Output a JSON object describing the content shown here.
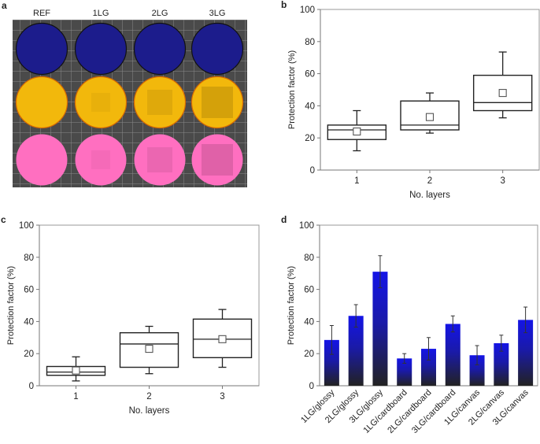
{
  "panel_a": {
    "label": "a",
    "columns": [
      "REF",
      "1LG",
      "2LG",
      "3LG"
    ],
    "row_colors": [
      "#1c1c8c",
      "#f2b80c",
      "#ff6fc0"
    ],
    "background_color": "#4a4a4a"
  },
  "chart_data": [
    {
      "panel": "b",
      "type": "box",
      "xlabel": "No. layers",
      "ylabel": "Protection factor (%)",
      "ylim": [
        0,
        100
      ],
      "yticks": [
        "0",
        "20",
        "40",
        "60",
        "80",
        "100"
      ],
      "categories": [
        "1",
        "2",
        "3"
      ],
      "boxes": [
        {
          "min": 12,
          "q1": 19,
          "median": 25,
          "q3": 28,
          "max": 37,
          "mean": 24
        },
        {
          "min": 23,
          "q1": 25,
          "median": 28,
          "q3": 43,
          "max": 48,
          "mean": 33
        },
        {
          "min": 32.5,
          "q1": 37,
          "median": 42,
          "q3": 59,
          "max": 73.5,
          "mean": 48
        }
      ]
    },
    {
      "panel": "c",
      "type": "box",
      "xlabel": "No. layers",
      "ylabel": "Protection factor (%)",
      "ylim": [
        0,
        100
      ],
      "yticks": [
        "0",
        "20",
        "40",
        "60",
        "80",
        "100"
      ],
      "categories": [
        "1",
        "2",
        "3"
      ],
      "boxes": [
        {
          "min": 3,
          "q1": 6.5,
          "median": 8.5,
          "q3": 12,
          "max": 18,
          "mean": 9.5
        },
        {
          "min": 7.5,
          "q1": 11.5,
          "median": 26,
          "q3": 33,
          "max": 37,
          "mean": 23
        },
        {
          "min": 11.5,
          "q1": 17.5,
          "median": 29,
          "q3": 41.5,
          "max": 47.5,
          "mean": 29
        }
      ]
    },
    {
      "panel": "d",
      "type": "bar",
      "xlabel": "",
      "ylabel": "Protection factor (%)",
      "ylim": [
        0,
        100
      ],
      "yticks": [
        "0",
        "20",
        "40",
        "60",
        "80",
        "100"
      ],
      "categories": [
        "1LG/glossy",
        "2LG/glossy",
        "3LG/glossy",
        "1LG/cardboard",
        "2LG/cardboard",
        "3LG/cardboard",
        "1LG/canvas",
        "2LG/canvas",
        "3LG/canvas"
      ],
      "values": [
        28.5,
        43.5,
        71,
        17,
        23,
        38.5,
        19,
        26.5,
        41
      ],
      "errors": [
        9,
        7,
        10,
        3,
        7,
        5,
        6,
        5,
        8
      ],
      "bar_color_top": "#1414e6",
      "bar_color_bottom": "#222222"
    }
  ]
}
